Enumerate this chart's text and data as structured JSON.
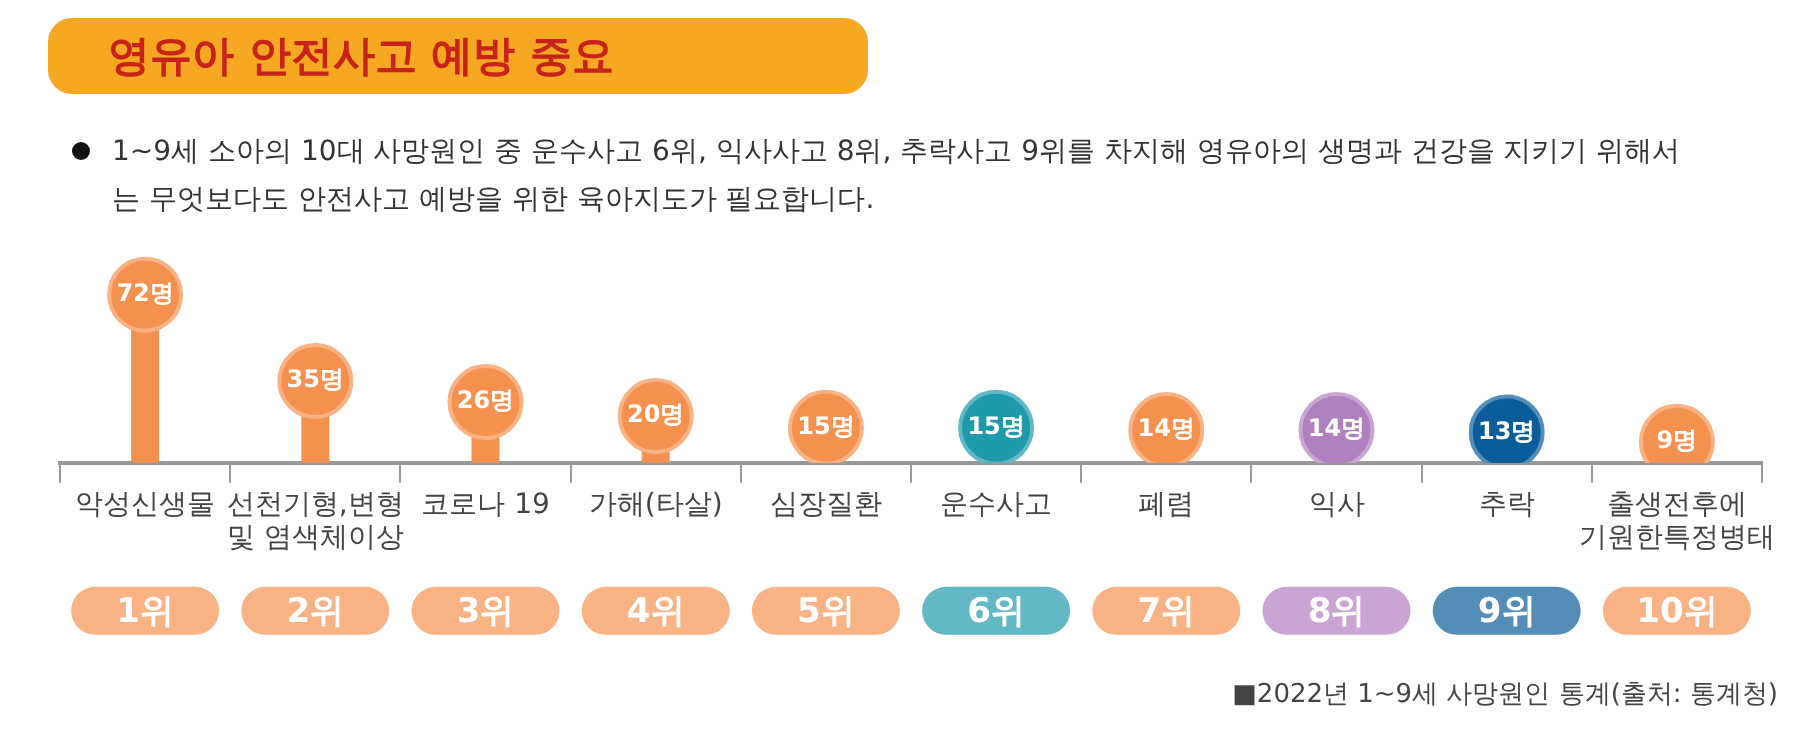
{
  "chart_data": {
    "type": "lollipop",
    "title": "영유아 안전사고 예방 중요",
    "subtitle": "1~9세 소아의 10대 사망원인 중 운수사고 6위, 익사사고 8위, 추락사고 9위를 차지해 영유아의 생명과 건강을 지키기 위해서는 무엇보다도 안전사고 예방을 위한 육아지도가 필요합니다.",
    "categories": [
      "악성신생물",
      "선천기형,변형 및 염색체이상",
      "코로나 19",
      "가해(타살)",
      "심장질환",
      "운수사고",
      "폐렴",
      "익사",
      "추락",
      "출생전후에 기원한특정병태"
    ],
    "values": [
      72,
      35,
      26,
      20,
      15,
      15,
      14,
      14,
      13,
      9
    ],
    "value_labels": [
      "72명",
      "35명",
      "26명",
      "20명",
      "15명",
      "15명",
      "14명",
      "14명",
      "13명",
      "9명"
    ],
    "colors": [
      "#f5914f",
      "#f5914f",
      "#f5914f",
      "#f5914f",
      "#f5914f",
      "#1f9aaa",
      "#f5914f",
      "#b07fbf",
      "#0a5c9a",
      "#f5914f"
    ],
    "annotations": [
      "1위",
      "2위",
      "3위",
      "4위",
      "5위",
      "6위",
      "7위",
      "8위",
      "9위",
      "10위",
      "■2022년 1~9세 사망원인 통계(출처: 통계청)"
    ],
    "legend": false,
    "grid": false
  }
}
